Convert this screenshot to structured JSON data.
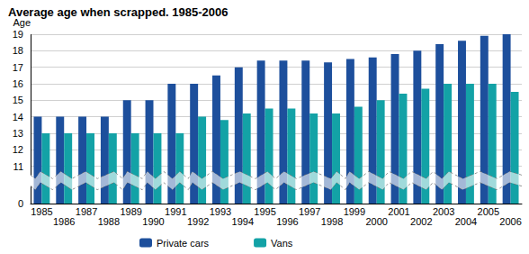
{
  "chart_data": {
    "type": "bar",
    "title": "Average age when scrapped. 1985-2006",
    "y_label": "Age",
    "categories": [
      "1985",
      "1986",
      "1987",
      "1988",
      "1989",
      "1990",
      "1991",
      "1992",
      "1993",
      "1994",
      "1995",
      "1996",
      "1997",
      "1998",
      "1999",
      "2000",
      "2001",
      "2002",
      "2003",
      "2004",
      "2005",
      "2006"
    ],
    "series": [
      {
        "name": "Private cars",
        "color": "#1d4f9c",
        "values": [
          14,
          14,
          14,
          14,
          15,
          15,
          16,
          16,
          16.5,
          17,
          17.4,
          17.4,
          17.4,
          17.3,
          17.5,
          17.6,
          17.8,
          18,
          18.4,
          18.6,
          18.9,
          19
        ]
      },
      {
        "name": "Vans",
        "color": "#13a2a6",
        "values": [
          13,
          13,
          13,
          13,
          13,
          13,
          13,
          14,
          13.8,
          14.2,
          14.5,
          14.5,
          14.2,
          14.2,
          14.6,
          15,
          15.4,
          15.7,
          16,
          16,
          16,
          15.5
        ]
      }
    ],
    "ylim": [
      0,
      19
    ],
    "yticks": [
      0,
      11,
      12,
      13,
      14,
      15,
      16,
      17,
      18,
      19
    ],
    "grid": true,
    "legend": "bottom-left"
  }
}
